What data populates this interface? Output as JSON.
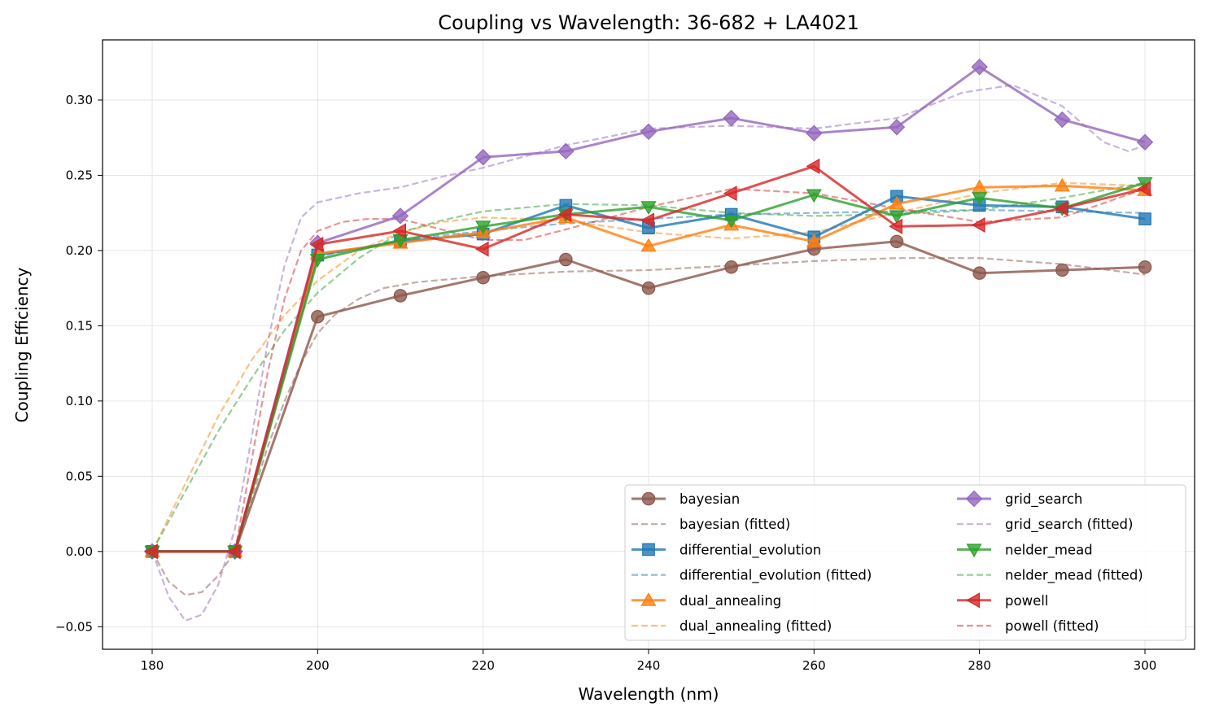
{
  "chart_data": {
    "type": "line",
    "title": "Coupling vs Wavelength: 36-682 + LA4021",
    "xlabel": "Wavelength (nm)",
    "ylabel": "Coupling Efficiency",
    "xlim": [
      174,
      306
    ],
    "ylim": [
      -0.065,
      0.34
    ],
    "xticks": [
      180,
      200,
      220,
      240,
      260,
      280,
      300
    ],
    "xtick_labels": [
      "180",
      "200",
      "220",
      "240",
      "260",
      "280",
      "300"
    ],
    "yticks": [
      -0.05,
      0.0,
      0.05,
      0.1,
      0.15,
      0.2,
      0.25,
      0.3
    ],
    "ytick_labels": [
      "−0.05",
      "0.00",
      "0.05",
      "0.10",
      "0.15",
      "0.20",
      "0.25",
      "0.30"
    ],
    "grid": true,
    "legend_position": "bottom-right",
    "legend_columns": 2,
    "x": [
      180,
      190,
      200,
      210,
      220,
      230,
      240,
      250,
      260,
      270,
      280,
      290,
      300
    ],
    "series": [
      {
        "name": "bayesian",
        "color": "#8c564b",
        "marker": "circle",
        "values": [
          0.0,
          0.0,
          0.156,
          0.17,
          0.182,
          0.194,
          0.175,
          0.189,
          0.201,
          0.206,
          0.185,
          0.187,
          0.189
        ],
        "fitted_name": "bayesian (fitted)",
        "fitted": [
          [
            180,
            0.0
          ],
          [
            182,
            -0.02
          ],
          [
            184,
            -0.029
          ],
          [
            186,
            -0.027
          ],
          [
            188,
            -0.016
          ],
          [
            190,
            0.0
          ],
          [
            192,
            0.035
          ],
          [
            194,
            0.07
          ],
          [
            196,
            0.1
          ],
          [
            198,
            0.125
          ],
          [
            200,
            0.145
          ],
          [
            202,
            0.157
          ],
          [
            205,
            0.168
          ],
          [
            208,
            0.175
          ],
          [
            212,
            0.179
          ],
          [
            220,
            0.183
          ],
          [
            230,
            0.186
          ],
          [
            240,
            0.187
          ],
          [
            250,
            0.19
          ],
          [
            260,
            0.193
          ],
          [
            270,
            0.195
          ],
          [
            280,
            0.195
          ],
          [
            290,
            0.191
          ],
          [
            300,
            0.184
          ]
        ]
      },
      {
        "name": "differential_evolution",
        "color": "#1f77b4",
        "marker": "square",
        "values": [
          0.0,
          0.0,
          0.197,
          0.206,
          0.211,
          0.23,
          0.215,
          0.224,
          0.209,
          0.236,
          0.23,
          0.229,
          0.221
        ],
        "fitted_name": "differential_evolution (fitted)",
        "fitted": [
          [
            200,
            0.196
          ],
          [
            210,
            0.207
          ],
          [
            220,
            0.213
          ],
          [
            230,
            0.218
          ],
          [
            240,
            0.221
          ],
          [
            250,
            0.224
          ],
          [
            260,
            0.225
          ],
          [
            270,
            0.226
          ],
          [
            280,
            0.227
          ],
          [
            290,
            0.226
          ],
          [
            300,
            0.225
          ]
        ]
      },
      {
        "name": "dual_annealing",
        "color": "#ff7f0e",
        "marker": "triangle-up",
        "values": [
          0.0,
          0.0,
          0.198,
          0.205,
          0.212,
          0.222,
          0.203,
          0.217,
          0.206,
          0.231,
          0.242,
          0.243,
          0.24
        ],
        "fitted_name": "dual_annealing (fitted)",
        "fitted": [
          [
            180,
            0.0
          ],
          [
            184,
            0.045
          ],
          [
            188,
            0.09
          ],
          [
            192,
            0.127
          ],
          [
            196,
            0.157
          ],
          [
            200,
            0.18
          ],
          [
            205,
            0.2
          ],
          [
            210,
            0.212
          ],
          [
            215,
            0.219
          ],
          [
            220,
            0.222
          ],
          [
            230,
            0.22
          ],
          [
            240,
            0.212
          ],
          [
            250,
            0.208
          ],
          [
            260,
            0.212
          ],
          [
            270,
            0.225
          ],
          [
            280,
            0.238
          ],
          [
            290,
            0.245
          ],
          [
            300,
            0.243
          ]
        ]
      },
      {
        "name": "grid_search",
        "color": "#9467bd",
        "marker": "diamond",
        "values": [
          0.0,
          0.0,
          0.205,
          0.223,
          0.262,
          0.266,
          0.279,
          0.288,
          0.278,
          0.282,
          0.322,
          0.287,
          0.272
        ],
        "fitted_name": "grid_search (fitted)",
        "fitted": [
          [
            180,
            0.0
          ],
          [
            182,
            -0.03
          ],
          [
            184,
            -0.046
          ],
          [
            186,
            -0.042
          ],
          [
            188,
            -0.022
          ],
          [
            190,
            0.015
          ],
          [
            192,
            0.075
          ],
          [
            194,
            0.14
          ],
          [
            196,
            0.19
          ],
          [
            198,
            0.222
          ],
          [
            200,
            0.232
          ],
          [
            205,
            0.238
          ],
          [
            210,
            0.242
          ],
          [
            215,
            0.249
          ],
          [
            220,
            0.255
          ],
          [
            230,
            0.27
          ],
          [
            240,
            0.281
          ],
          [
            250,
            0.283
          ],
          [
            260,
            0.281
          ],
          [
            270,
            0.288
          ],
          [
            278,
            0.305
          ],
          [
            284,
            0.31
          ],
          [
            290,
            0.296
          ],
          [
            295,
            0.272
          ],
          [
            298,
            0.266
          ],
          [
            300,
            0.27
          ]
        ]
      },
      {
        "name": "nelder_mead",
        "color": "#2ca02c",
        "marker": "triangle-down",
        "values": [
          0.0,
          0.0,
          0.194,
          0.207,
          0.216,
          0.224,
          0.229,
          0.22,
          0.237,
          0.223,
          0.235,
          0.228,
          0.245
        ],
        "fitted_name": "nelder_mead (fitted)",
        "fitted": [
          [
            180,
            0.0
          ],
          [
            184,
            0.04
          ],
          [
            188,
            0.08
          ],
          [
            192,
            0.115
          ],
          [
            196,
            0.147
          ],
          [
            200,
            0.172
          ],
          [
            205,
            0.195
          ],
          [
            210,
            0.212
          ],
          [
            215,
            0.22
          ],
          [
            220,
            0.226
          ],
          [
            230,
            0.231
          ],
          [
            240,
            0.23
          ],
          [
            250,
            0.225
          ],
          [
            260,
            0.223
          ],
          [
            270,
            0.224
          ],
          [
            280,
            0.227
          ],
          [
            290,
            0.235
          ],
          [
            300,
            0.245
          ]
        ]
      },
      {
        "name": "powell",
        "color": "#d62728",
        "marker": "triangle-left",
        "values": [
          0.0,
          0.0,
          0.204,
          0.213,
          0.201,
          0.224,
          0.22,
          0.238,
          0.256,
          0.216,
          0.217,
          0.228,
          0.241
        ],
        "fitted_name": "powell (fitted)",
        "fitted": [
          [
            190,
            0.0
          ],
          [
            192,
            0.06
          ],
          [
            194,
            0.12
          ],
          [
            196,
            0.168
          ],
          [
            198,
            0.2
          ],
          [
            200,
            0.213
          ],
          [
            203,
            0.219
          ],
          [
            206,
            0.221
          ],
          [
            210,
            0.221
          ],
          [
            215,
            0.214
          ],
          [
            220,
            0.207
          ],
          [
            225,
            0.207
          ],
          [
            230,
            0.214
          ],
          [
            240,
            0.229
          ],
          [
            250,
            0.241
          ],
          [
            260,
            0.238
          ],
          [
            270,
            0.228
          ],
          [
            280,
            0.219
          ],
          [
            290,
            0.222
          ],
          [
            300,
            0.241
          ]
        ]
      }
    ]
  }
}
